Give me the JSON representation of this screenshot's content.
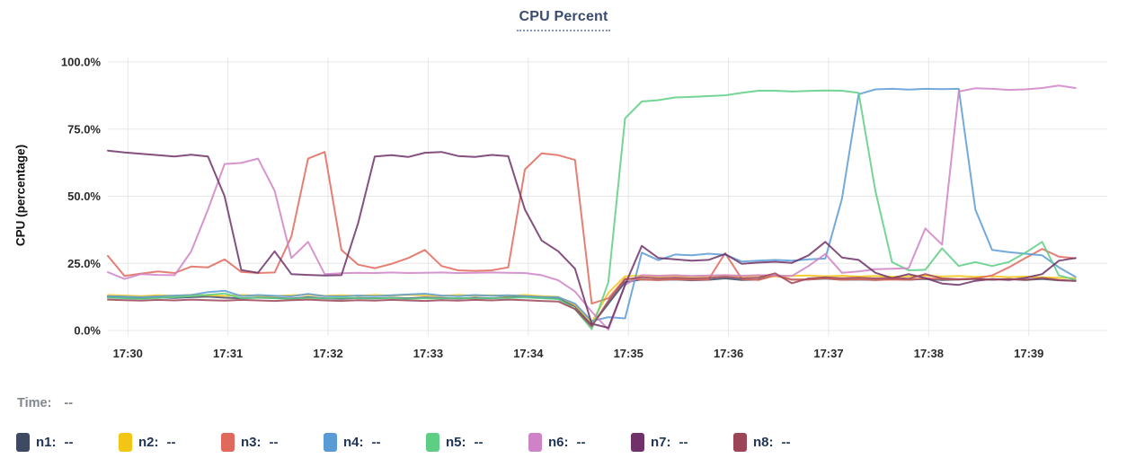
{
  "header": {
    "title": "CPU Percent"
  },
  "y_axis": {
    "label": "CPU (percentage)"
  },
  "legend": {
    "time_label": "Time:",
    "time_value": "--",
    "items": [
      {
        "name": "n1",
        "value": "--",
        "color": "#3e4a63"
      },
      {
        "name": "n2",
        "value": "--",
        "color": "#f3c515"
      },
      {
        "name": "n3",
        "value": "--",
        "color": "#e0685c"
      },
      {
        "name": "n4",
        "value": "--",
        "color": "#5b9bd5"
      },
      {
        "name": "n5",
        "value": "--",
        "color": "#5dce84"
      },
      {
        "name": "n6",
        "value": "--",
        "color": "#cf82c6"
      },
      {
        "name": "n7",
        "value": "--",
        "color": "#6f3168"
      },
      {
        "name": "n8",
        "value": "--",
        "color": "#9d4558"
      }
    ]
  },
  "chart_data": {
    "type": "line",
    "title": "CPU Percent",
    "ylabel": "CPU (percentage)",
    "ylim": [
      0,
      100
    ],
    "grid": true,
    "legend_position": "bottom",
    "y_ticks": [
      {
        "value": 0,
        "label": "0.0%"
      },
      {
        "value": 25,
        "label": "25.0%"
      },
      {
        "value": 50,
        "label": "50.0%"
      },
      {
        "value": 75,
        "label": "75.0%"
      },
      {
        "value": 100,
        "label": "100.0%"
      }
    ],
    "x_ticks": [
      "17:30",
      "17:31",
      "17:32",
      "17:33",
      "17:34",
      "17:35",
      "17:36",
      "17:37",
      "17:38",
      "17:39"
    ],
    "x_range": {
      "min": "17:29:48",
      "max": "17:39:47"
    },
    "x": [
      "17:29:48",
      "17:29:58",
      "17:30:08",
      "17:30:18",
      "17:30:28",
      "17:30:38",
      "17:30:48",
      "17:30:58",
      "17:31:08",
      "17:31:18",
      "17:31:28",
      "17:31:38",
      "17:31:48",
      "17:31:58",
      "17:32:08",
      "17:32:18",
      "17:32:28",
      "17:32:38",
      "17:32:48",
      "17:32:58",
      "17:33:08",
      "17:33:18",
      "17:33:28",
      "17:33:38",
      "17:33:48",
      "17:33:58",
      "17:34:08",
      "17:34:18",
      "17:34:28",
      "17:34:38",
      "17:34:48",
      "17:34:58",
      "17:35:08",
      "17:35:18",
      "17:35:28",
      "17:35:38",
      "17:35:48",
      "17:35:58",
      "17:36:08",
      "17:36:18",
      "17:36:28",
      "17:36:38",
      "17:36:48",
      "17:36:58",
      "17:37:08",
      "17:37:18",
      "17:37:28",
      "17:37:38",
      "17:37:48",
      "17:37:58",
      "17:38:08",
      "17:38:18",
      "17:38:28",
      "17:38:38",
      "17:38:48",
      "17:38:58",
      "17:39:08",
      "17:39:18",
      "17:39:28"
    ],
    "series": [
      {
        "name": "n1",
        "color": "#3e4a63",
        "values": [
          12.5,
          12.2,
          12.0,
          12.3,
          12.1,
          12.4,
          12.6,
          12.2,
          12.0,
          12.3,
          12.1,
          11.9,
          12.4,
          12.0,
          11.8,
          12.1,
          12.0,
          12.2,
          12.0,
          12.3,
          12.1,
          11.9,
          12.2,
          12.0,
          12.4,
          12.6,
          12.2,
          11.9,
          9.0,
          2.0,
          10.0,
          18.0,
          19.0,
          18.8,
          19.0,
          18.7,
          18.9,
          19.4,
          18.8,
          19.0,
          20.5,
          19.0,
          19.0,
          19.3,
          18.9,
          19.0,
          18.8,
          19.1,
          18.9,
          19.2,
          18.8,
          19.0,
          19.2,
          18.9,
          19.1,
          18.8,
          19.2,
          18.7,
          18.5
        ]
      },
      {
        "name": "n2",
        "color": "#f3c515",
        "values": [
          13.2,
          13.0,
          12.8,
          13.1,
          12.9,
          13.3,
          13.1,
          12.9,
          13.2,
          13.0,
          12.8,
          13.1,
          13.3,
          12.9,
          13.1,
          12.9,
          13.2,
          13.0,
          13.3,
          13.1,
          12.9,
          13.2,
          13.0,
          13.1,
          12.9,
          13.2,
          12.8,
          12.5,
          9.5,
          3.0,
          14.0,
          20.2,
          20.5,
          20.2,
          20.4,
          20.1,
          20.3,
          20.6,
          20.2,
          20.4,
          20.1,
          20.3,
          20.5,
          20.2,
          20.4,
          20.1,
          20.3,
          20.0,
          20.2,
          20.4,
          20.1,
          20.3,
          20.0,
          20.2,
          19.9,
          20.1,
          19.8,
          19.6,
          19.5
        ]
      },
      {
        "name": "n3",
        "color": "#e0685c",
        "values": [
          27.8,
          20.3,
          21.2,
          22.0,
          21.4,
          23.8,
          23.5,
          26.5,
          21.8,
          21.4,
          21.6,
          35.0,
          64.0,
          66.5,
          30.0,
          24.5,
          23.2,
          24.8,
          27.0,
          30.0,
          24.0,
          22.4,
          22.2,
          22.4,
          23.5,
          60.0,
          66.0,
          65.3,
          63.5,
          10.0,
          12.0,
          19.3,
          19.0,
          18.8,
          19.1,
          18.9,
          19.0,
          28.8,
          19.2,
          18.8,
          20.5,
          18.9,
          19.0,
          19.5,
          18.9,
          19.1,
          18.8,
          19.0,
          18.9,
          19.5,
          19.2,
          19.0,
          19.4,
          20.5,
          23.5,
          27.0,
          30.4,
          27.5,
          26.9
        ]
      },
      {
        "name": "n4",
        "color": "#5b9bd5",
        "values": [
          12.8,
          12.6,
          12.4,
          12.7,
          13.0,
          13.2,
          14.3,
          14.8,
          12.8,
          13.2,
          12.9,
          12.7,
          13.6,
          12.8,
          12.7,
          13.0,
          12.8,
          13.1,
          13.4,
          13.7,
          13.0,
          12.8,
          13.2,
          12.9,
          13.1,
          12.8,
          12.5,
          12.4,
          10.0,
          3.5,
          5.0,
          4.5,
          29.0,
          26.2,
          28.3,
          28.0,
          28.6,
          28.2,
          25.7,
          26.0,
          26.3,
          26.0,
          26.5,
          26.8,
          49.0,
          88.0,
          89.8,
          90.0,
          89.7,
          90.0,
          89.9,
          90.0,
          45.0,
          30.0,
          29.2,
          28.6,
          28.0,
          23.5,
          20.0
        ]
      },
      {
        "name": "n5",
        "color": "#5dce84",
        "values": [
          12.2,
          12.0,
          11.8,
          12.1,
          12.4,
          12.8,
          13.3,
          13.8,
          12.0,
          12.2,
          12.0,
          11.8,
          12.1,
          11.9,
          12.2,
          12.0,
          11.9,
          12.1,
          11.8,
          12.0,
          11.9,
          12.1,
          11.9,
          12.0,
          12.1,
          12.3,
          12.0,
          11.7,
          8.0,
          0.5,
          18.0,
          79.0,
          85.3,
          85.8,
          86.8,
          87.0,
          87.3,
          87.6,
          88.5,
          89.3,
          89.3,
          89.0,
          89.2,
          89.4,
          89.3,
          88.5,
          52.0,
          25.5,
          22.4,
          22.6,
          30.6,
          24.0,
          25.5,
          24.0,
          25.5,
          29.0,
          33.0,
          20.5,
          18.9
        ]
      },
      {
        "name": "n6",
        "color": "#cf82c6",
        "values": [
          21.7,
          19.2,
          21.0,
          20.7,
          20.6,
          29.5,
          45.0,
          62.0,
          62.4,
          64.0,
          52.0,
          27.0,
          33.0,
          21.0,
          21.3,
          21.5,
          21.4,
          21.6,
          21.4,
          21.5,
          21.6,
          21.4,
          21.5,
          21.6,
          21.5,
          21.4,
          20.6,
          18.7,
          14.5,
          7.0,
          0.3,
          17.0,
          20.6,
          20.4,
          20.6,
          20.3,
          20.5,
          20.6,
          20.4,
          20.6,
          20.5,
          20.3,
          24.0,
          28.5,
          21.5,
          22.0,
          22.8,
          23.0,
          23.2,
          38.0,
          32.0,
          89.0,
          90.2,
          90.0,
          89.6,
          89.8,
          90.3,
          91.2,
          90.3
        ]
      },
      {
        "name": "n7",
        "color": "#6f3168",
        "values": [
          67.0,
          66.3,
          65.8,
          65.3,
          64.8,
          65.5,
          64.8,
          50.0,
          22.5,
          21.5,
          29.5,
          21.0,
          20.7,
          20.5,
          20.6,
          40.0,
          64.8,
          65.3,
          64.6,
          66.2,
          66.5,
          65.0,
          64.6,
          65.4,
          64.9,
          45.0,
          33.5,
          29.5,
          23.0,
          2.5,
          1.0,
          17.0,
          31.5,
          27.0,
          26.5,
          26.0,
          26.3,
          28.5,
          24.8,
          25.3,
          25.6,
          25.2,
          28.0,
          33.0,
          27.2,
          26.3,
          21.5,
          19.5,
          21.0,
          19.5,
          17.5,
          17.0,
          18.5,
          19.2,
          18.8,
          19.6,
          21.0,
          26.0,
          27.0
        ]
      },
      {
        "name": "n8",
        "color": "#9d4558",
        "values": [
          11.5,
          11.3,
          11.1,
          11.4,
          11.2,
          11.5,
          11.3,
          11.1,
          11.4,
          11.2,
          11.0,
          11.3,
          11.5,
          11.2,
          11.0,
          11.3,
          11.1,
          11.4,
          11.2,
          11.0,
          11.3,
          11.1,
          11.4,
          11.2,
          11.5,
          11.3,
          11.0,
          10.8,
          8.0,
          1.5,
          11.0,
          19.0,
          19.8,
          19.5,
          19.7,
          19.4,
          19.6,
          20.0,
          19.5,
          19.7,
          21.3,
          17.6,
          19.4,
          19.8,
          19.5,
          19.7,
          19.4,
          19.6,
          19.3,
          21.0,
          19.4,
          19.1,
          19.3,
          19.0,
          19.2,
          18.9,
          19.6,
          18.8,
          18.5
        ]
      }
    ]
  }
}
